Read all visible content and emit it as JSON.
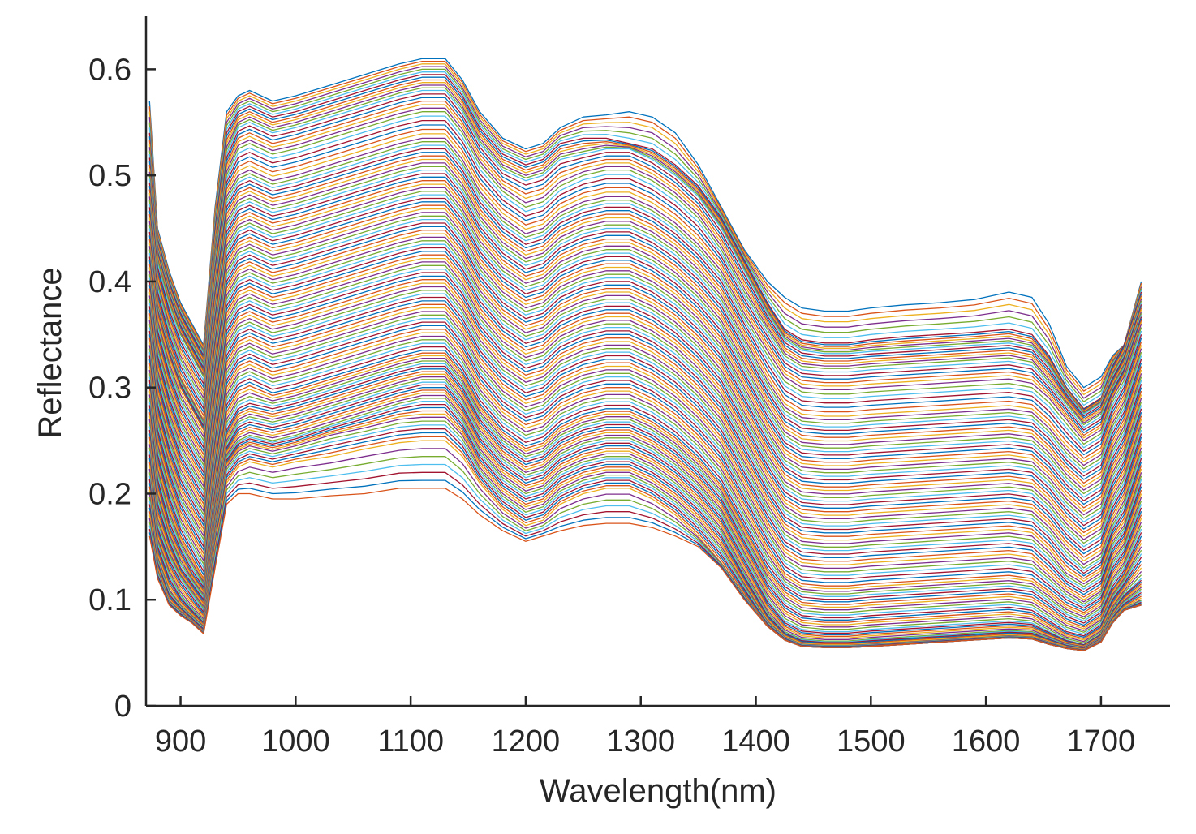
{
  "chart_data": {
    "type": "line",
    "title": "",
    "xlabel": "Wavelength(nm)",
    "ylabel": "Reflectance",
    "xlim": [
      870,
      1760
    ],
    "ylim": [
      0,
      0.65
    ],
    "xticks": [
      "900",
      "1000",
      "1100",
      "1200",
      "1300",
      "1400",
      "1500",
      "1600",
      "1700"
    ],
    "xtick_values": [
      900,
      1000,
      1100,
      1200,
      1300,
      1400,
      1500,
      1600,
      1700
    ],
    "yticks": [
      "0",
      "0.1",
      "0.2",
      "0.3",
      "0.4",
      "0.5",
      "0.6"
    ],
    "ytick_values": [
      0,
      0.1,
      0.2,
      0.3,
      0.4,
      0.5,
      0.6
    ],
    "grid": false,
    "legend": "none",
    "palette": [
      "#0072BD",
      "#D95319",
      "#EDB120",
      "#7E2F8E",
      "#77AC30",
      "#4DBEEE",
      "#A2142F"
    ],
    "x": [
      873,
      880,
      890,
      900,
      910,
      920,
      930,
      940,
      950,
      960,
      980,
      1000,
      1030,
      1060,
      1090,
      1110,
      1130,
      1145,
      1160,
      1180,
      1200,
      1215,
      1230,
      1250,
      1270,
      1290,
      1310,
      1330,
      1350,
      1370,
      1390,
      1410,
      1425,
      1440,
      1460,
      1480,
      1500,
      1530,
      1560,
      1590,
      1620,
      1640,
      1655,
      1670,
      1685,
      1700,
      1710,
      1720,
      1735
    ],
    "series": [
      {
        "y": [
          0.57,
          0.45,
          0.41,
          0.38,
          0.36,
          0.34,
          0.47,
          0.56,
          0.575,
          0.58,
          0.57,
          0.575,
          0.585,
          0.595,
          0.605,
          0.61,
          0.61,
          0.59,
          0.56,
          0.535,
          0.525,
          0.53,
          0.545,
          0.555,
          0.557,
          0.56,
          0.555,
          0.54,
          0.51,
          0.47,
          0.43,
          0.4,
          0.385,
          0.375,
          0.372,
          0.372,
          0.375,
          0.378,
          0.38,
          0.383,
          0.39,
          0.385,
          0.36,
          0.32,
          0.3,
          0.31,
          0.33,
          0.34,
          0.4
        ]
      },
      {
        "y": [
          0.54,
          0.44,
          0.4,
          0.37,
          0.35,
          0.33,
          0.45,
          0.54,
          0.56,
          0.565,
          0.555,
          0.56,
          0.57,
          0.58,
          0.59,
          0.595,
          0.595,
          0.575,
          0.545,
          0.52,
          0.51,
          0.515,
          0.53,
          0.535,
          0.535,
          0.53,
          0.525,
          0.51,
          0.49,
          0.46,
          0.42,
          0.38,
          0.355,
          0.345,
          0.342,
          0.342,
          0.345,
          0.348,
          0.35,
          0.352,
          0.355,
          0.35,
          0.33,
          0.3,
          0.28,
          0.29,
          0.32,
          0.34,
          0.39
        ]
      },
      {
        "y": [
          0.52,
          0.43,
          0.39,
          0.36,
          0.34,
          0.32,
          0.43,
          0.52,
          0.545,
          0.55,
          0.54,
          0.545,
          0.555,
          0.565,
          0.575,
          0.58,
          0.58,
          0.56,
          0.53,
          0.505,
          0.495,
          0.5,
          0.515,
          0.52,
          0.525,
          0.525,
          0.515,
          0.5,
          0.48,
          0.45,
          0.41,
          0.37,
          0.345,
          0.335,
          0.332,
          0.332,
          0.334,
          0.336,
          0.338,
          0.34,
          0.342,
          0.338,
          0.32,
          0.295,
          0.275,
          0.285,
          0.31,
          0.33,
          0.38
        ]
      },
      {
        "y": [
          0.5,
          0.42,
          0.38,
          0.35,
          0.33,
          0.31,
          0.42,
          0.5,
          0.525,
          0.53,
          0.52,
          0.525,
          0.535,
          0.545,
          0.555,
          0.56,
          0.56,
          0.54,
          0.51,
          0.485,
          0.47,
          0.475,
          0.49,
          0.5,
          0.505,
          0.505,
          0.495,
          0.48,
          0.46,
          0.43,
          0.39,
          0.355,
          0.33,
          0.32,
          0.318,
          0.318,
          0.32,
          0.322,
          0.324,
          0.326,
          0.328,
          0.324,
          0.305,
          0.285,
          0.265,
          0.275,
          0.3,
          0.32,
          0.37
        ]
      },
      {
        "y": [
          0.48,
          0.4,
          0.36,
          0.33,
          0.31,
          0.29,
          0.4,
          0.48,
          0.5,
          0.505,
          0.495,
          0.5,
          0.51,
          0.52,
          0.53,
          0.535,
          0.535,
          0.515,
          0.485,
          0.46,
          0.445,
          0.45,
          0.465,
          0.475,
          0.48,
          0.48,
          0.47,
          0.455,
          0.435,
          0.41,
          0.37,
          0.335,
          0.31,
          0.3,
          0.298,
          0.298,
          0.3,
          0.302,
          0.304,
          0.306,
          0.308,
          0.304,
          0.29,
          0.27,
          0.25,
          0.26,
          0.29,
          0.31,
          0.36
        ]
      },
      {
        "y": [
          0.46,
          0.38,
          0.34,
          0.31,
          0.29,
          0.27,
          0.38,
          0.46,
          0.48,
          0.485,
          0.475,
          0.48,
          0.49,
          0.5,
          0.51,
          0.515,
          0.515,
          0.495,
          0.465,
          0.44,
          0.425,
          0.43,
          0.445,
          0.455,
          0.46,
          0.46,
          0.45,
          0.435,
          0.415,
          0.39,
          0.35,
          0.31,
          0.285,
          0.275,
          0.273,
          0.273,
          0.275,
          0.277,
          0.279,
          0.281,
          0.283,
          0.28,
          0.265,
          0.245,
          0.23,
          0.24,
          0.27,
          0.29,
          0.34
        ]
      },
      {
        "y": [
          0.44,
          0.37,
          0.33,
          0.3,
          0.28,
          0.26,
          0.36,
          0.44,
          0.46,
          0.465,
          0.455,
          0.46,
          0.47,
          0.48,
          0.49,
          0.495,
          0.495,
          0.475,
          0.445,
          0.42,
          0.405,
          0.41,
          0.425,
          0.435,
          0.44,
          0.44,
          0.43,
          0.415,
          0.395,
          0.37,
          0.33,
          0.29,
          0.265,
          0.255,
          0.253,
          0.253,
          0.255,
          0.257,
          0.259,
          0.261,
          0.263,
          0.26,
          0.245,
          0.225,
          0.21,
          0.22,
          0.25,
          0.27,
          0.32
        ]
      },
      {
        "y": [
          0.42,
          0.35,
          0.31,
          0.28,
          0.26,
          0.24,
          0.34,
          0.42,
          0.44,
          0.445,
          0.435,
          0.44,
          0.45,
          0.46,
          0.47,
          0.475,
          0.475,
          0.455,
          0.425,
          0.4,
          0.385,
          0.39,
          0.405,
          0.415,
          0.42,
          0.42,
          0.41,
          0.395,
          0.375,
          0.35,
          0.31,
          0.27,
          0.245,
          0.235,
          0.233,
          0.233,
          0.235,
          0.237,
          0.239,
          0.241,
          0.243,
          0.24,
          0.225,
          0.205,
          0.19,
          0.2,
          0.23,
          0.25,
          0.3
        ]
      },
      {
        "y": [
          0.4,
          0.33,
          0.29,
          0.26,
          0.24,
          0.22,
          0.32,
          0.4,
          0.42,
          0.425,
          0.415,
          0.42,
          0.43,
          0.44,
          0.45,
          0.455,
          0.455,
          0.435,
          0.405,
          0.38,
          0.365,
          0.37,
          0.385,
          0.395,
          0.4,
          0.4,
          0.39,
          0.375,
          0.355,
          0.33,
          0.29,
          0.25,
          0.225,
          0.215,
          0.213,
          0.213,
          0.215,
          0.217,
          0.219,
          0.221,
          0.223,
          0.22,
          0.205,
          0.185,
          0.17,
          0.18,
          0.21,
          0.23,
          0.28
        ]
      },
      {
        "y": [
          0.38,
          0.31,
          0.27,
          0.24,
          0.22,
          0.2,
          0.3,
          0.38,
          0.4,
          0.405,
          0.395,
          0.4,
          0.41,
          0.42,
          0.43,
          0.435,
          0.435,
          0.415,
          0.385,
          0.36,
          0.345,
          0.35,
          0.365,
          0.375,
          0.38,
          0.38,
          0.37,
          0.355,
          0.335,
          0.31,
          0.27,
          0.23,
          0.205,
          0.195,
          0.193,
          0.193,
          0.195,
          0.197,
          0.199,
          0.201,
          0.203,
          0.2,
          0.185,
          0.165,
          0.15,
          0.16,
          0.19,
          0.21,
          0.26
        ]
      },
      {
        "y": [
          0.36,
          0.29,
          0.25,
          0.22,
          0.2,
          0.18,
          0.28,
          0.36,
          0.38,
          0.385,
          0.375,
          0.38,
          0.39,
          0.4,
          0.41,
          0.415,
          0.415,
          0.395,
          0.365,
          0.34,
          0.325,
          0.33,
          0.345,
          0.355,
          0.36,
          0.36,
          0.35,
          0.335,
          0.315,
          0.29,
          0.25,
          0.21,
          0.185,
          0.175,
          0.173,
          0.173,
          0.175,
          0.177,
          0.179,
          0.181,
          0.183,
          0.18,
          0.165,
          0.145,
          0.13,
          0.14,
          0.17,
          0.19,
          0.24
        ]
      },
      {
        "y": [
          0.34,
          0.27,
          0.23,
          0.2,
          0.18,
          0.16,
          0.26,
          0.34,
          0.36,
          0.365,
          0.355,
          0.36,
          0.37,
          0.38,
          0.39,
          0.395,
          0.395,
          0.375,
          0.345,
          0.32,
          0.305,
          0.31,
          0.325,
          0.335,
          0.34,
          0.34,
          0.33,
          0.315,
          0.295,
          0.27,
          0.23,
          0.19,
          0.165,
          0.155,
          0.153,
          0.153,
          0.155,
          0.157,
          0.159,
          0.161,
          0.163,
          0.16,
          0.145,
          0.125,
          0.115,
          0.125,
          0.155,
          0.17,
          0.22
        ]
      },
      {
        "y": [
          0.32,
          0.25,
          0.21,
          0.18,
          0.16,
          0.14,
          0.24,
          0.32,
          0.34,
          0.345,
          0.335,
          0.34,
          0.35,
          0.36,
          0.37,
          0.375,
          0.375,
          0.355,
          0.325,
          0.3,
          0.285,
          0.29,
          0.305,
          0.315,
          0.32,
          0.32,
          0.31,
          0.295,
          0.275,
          0.25,
          0.21,
          0.17,
          0.145,
          0.135,
          0.133,
          0.133,
          0.135,
          0.137,
          0.139,
          0.141,
          0.143,
          0.14,
          0.125,
          0.11,
          0.1,
          0.11,
          0.14,
          0.155,
          0.2
        ]
      },
      {
        "y": [
          0.3,
          0.23,
          0.19,
          0.16,
          0.14,
          0.12,
          0.22,
          0.3,
          0.32,
          0.325,
          0.315,
          0.32,
          0.33,
          0.34,
          0.35,
          0.355,
          0.355,
          0.335,
          0.305,
          0.28,
          0.265,
          0.27,
          0.285,
          0.295,
          0.3,
          0.3,
          0.29,
          0.275,
          0.255,
          0.23,
          0.19,
          0.15,
          0.125,
          0.115,
          0.113,
          0.113,
          0.115,
          0.117,
          0.119,
          0.121,
          0.123,
          0.12,
          0.108,
          0.095,
          0.088,
          0.098,
          0.125,
          0.14,
          0.18
        ]
      },
      {
        "y": [
          0.28,
          0.21,
          0.17,
          0.145,
          0.125,
          0.11,
          0.2,
          0.28,
          0.3,
          0.305,
          0.295,
          0.3,
          0.31,
          0.32,
          0.33,
          0.335,
          0.335,
          0.315,
          0.285,
          0.26,
          0.245,
          0.25,
          0.265,
          0.275,
          0.28,
          0.28,
          0.27,
          0.255,
          0.235,
          0.21,
          0.17,
          0.13,
          0.11,
          0.1,
          0.098,
          0.098,
          0.1,
          0.102,
          0.104,
          0.106,
          0.108,
          0.105,
          0.094,
          0.082,
          0.076,
          0.086,
          0.11,
          0.125,
          0.16
        ]
      },
      {
        "y": [
          0.26,
          0.19,
          0.155,
          0.13,
          0.115,
          0.1,
          0.19,
          0.26,
          0.28,
          0.285,
          0.28,
          0.285,
          0.295,
          0.305,
          0.315,
          0.32,
          0.32,
          0.3,
          0.27,
          0.245,
          0.23,
          0.235,
          0.25,
          0.26,
          0.265,
          0.265,
          0.255,
          0.24,
          0.22,
          0.195,
          0.155,
          0.115,
          0.095,
          0.085,
          0.083,
          0.083,
          0.085,
          0.087,
          0.089,
          0.091,
          0.093,
          0.09,
          0.08,
          0.07,
          0.066,
          0.076,
          0.1,
          0.115,
          0.14
        ]
      },
      {
        "y": [
          0.24,
          0.17,
          0.14,
          0.12,
          0.105,
          0.09,
          0.18,
          0.245,
          0.265,
          0.27,
          0.265,
          0.27,
          0.28,
          0.29,
          0.3,
          0.305,
          0.305,
          0.285,
          0.255,
          0.23,
          0.215,
          0.22,
          0.235,
          0.245,
          0.25,
          0.25,
          0.24,
          0.225,
          0.205,
          0.18,
          0.14,
          0.1,
          0.08,
          0.072,
          0.07,
          0.07,
          0.072,
          0.074,
          0.076,
          0.078,
          0.08,
          0.078,
          0.07,
          0.062,
          0.058,
          0.068,
          0.09,
          0.105,
          0.12
        ]
      },
      {
        "y": [
          0.22,
          0.155,
          0.125,
          0.105,
          0.092,
          0.08,
          0.17,
          0.235,
          0.25,
          0.255,
          0.25,
          0.255,
          0.265,
          0.275,
          0.285,
          0.29,
          0.29,
          0.27,
          0.24,
          0.215,
          0.2,
          0.205,
          0.22,
          0.23,
          0.235,
          0.235,
          0.225,
          0.21,
          0.19,
          0.165,
          0.125,
          0.088,
          0.07,
          0.063,
          0.061,
          0.061,
          0.063,
          0.065,
          0.067,
          0.069,
          0.071,
          0.07,
          0.064,
          0.058,
          0.055,
          0.064,
          0.085,
          0.098,
          0.11
        ]
      },
      {
        "y": [
          0.2,
          0.14,
          0.11,
          0.095,
          0.085,
          0.075,
          0.16,
          0.225,
          0.24,
          0.245,
          0.24,
          0.245,
          0.255,
          0.262,
          0.27,
          0.272,
          0.272,
          0.255,
          0.225,
          0.2,
          0.185,
          0.19,
          0.205,
          0.215,
          0.22,
          0.22,
          0.21,
          0.195,
          0.175,
          0.15,
          0.115,
          0.08,
          0.065,
          0.058,
          0.057,
          0.057,
          0.058,
          0.06,
          0.062,
          0.064,
          0.066,
          0.065,
          0.06,
          0.055,
          0.053,
          0.062,
          0.08,
          0.092,
          0.1
        ]
      },
      {
        "y": [
          0.18,
          0.13,
          0.1,
          0.09,
          0.08,
          0.07,
          0.15,
          0.21,
          0.225,
          0.23,
          0.225,
          0.23,
          0.235,
          0.242,
          0.248,
          0.25,
          0.25,
          0.235,
          0.21,
          0.185,
          0.17,
          0.175,
          0.19,
          0.2,
          0.205,
          0.205,
          0.195,
          0.18,
          0.16,
          0.135,
          0.105,
          0.075,
          0.062,
          0.056,
          0.055,
          0.055,
          0.056,
          0.058,
          0.06,
          0.062,
          0.064,
          0.063,
          0.058,
          0.054,
          0.052,
          0.06,
          0.078,
          0.09,
          0.095
        ]
      },
      {
        "y": [
          0.16,
          0.12,
          0.095,
          0.085,
          0.078,
          0.068,
          0.13,
          0.19,
          0.2,
          0.2,
          0.195,
          0.195,
          0.198,
          0.2,
          0.205,
          0.205,
          0.205,
          0.195,
          0.18,
          0.165,
          0.155,
          0.16,
          0.165,
          0.17,
          0.172,
          0.172,
          0.168,
          0.16,
          0.15,
          0.13,
          0.1,
          0.075,
          0.062,
          0.056,
          0.055,
          0.055,
          0.056,
          0.058,
          0.06,
          0.062,
          0.064,
          0.063,
          0.058,
          0.054,
          0.052,
          0.06,
          0.078,
          0.09,
          0.095
        ]
      }
    ]
  }
}
